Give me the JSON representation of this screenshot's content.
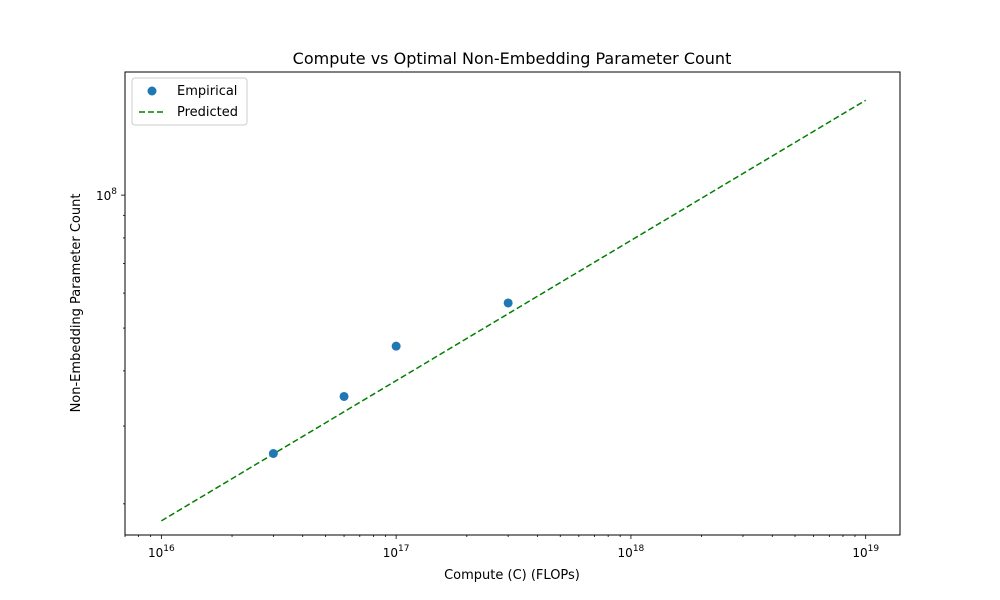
{
  "chart_data": {
    "type": "scatter",
    "title": "Compute vs Optimal Non-Embedding Parameter Count",
    "xlabel": "Compute (C) (FLOPs)",
    "ylabel": "Non-Embedding Parameter Count",
    "x_scale": "log",
    "y_scale": "log",
    "xlim": [
      7000000000000000,
      14000000000000000000
    ],
    "ylim": [
      17000000,
      190000000
    ],
    "x_ticks": [
      {
        "value": 1e+16,
        "base": "10",
        "exp": "16"
      },
      {
        "value": 1e+17,
        "base": "10",
        "exp": "17"
      },
      {
        "value": 1e+18,
        "base": "10",
        "exp": "18"
      },
      {
        "value": 1e+19,
        "base": "10",
        "exp": "19"
      }
    ],
    "y_ticks": [
      {
        "value": 100000000.0,
        "base": "10",
        "exp": "8"
      }
    ],
    "legend": {
      "position": "top-left"
    },
    "series": [
      {
        "name": "Empirical",
        "kind": "scatter",
        "color": "#1f77b4",
        "x": [
          30000000000000000,
          60000000000000000,
          100000000000000000,
          300000000000000000
        ],
        "y": [
          26000000,
          35000000,
          45500000,
          57000000
        ]
      },
      {
        "name": "Predicted",
        "kind": "line",
        "style": "dashed",
        "color": "#008000",
        "x": [
          10000000000000000,
          10000000000000000000
        ],
        "y": [
          18300000,
          164000000
        ]
      }
    ],
    "grid": false
  }
}
